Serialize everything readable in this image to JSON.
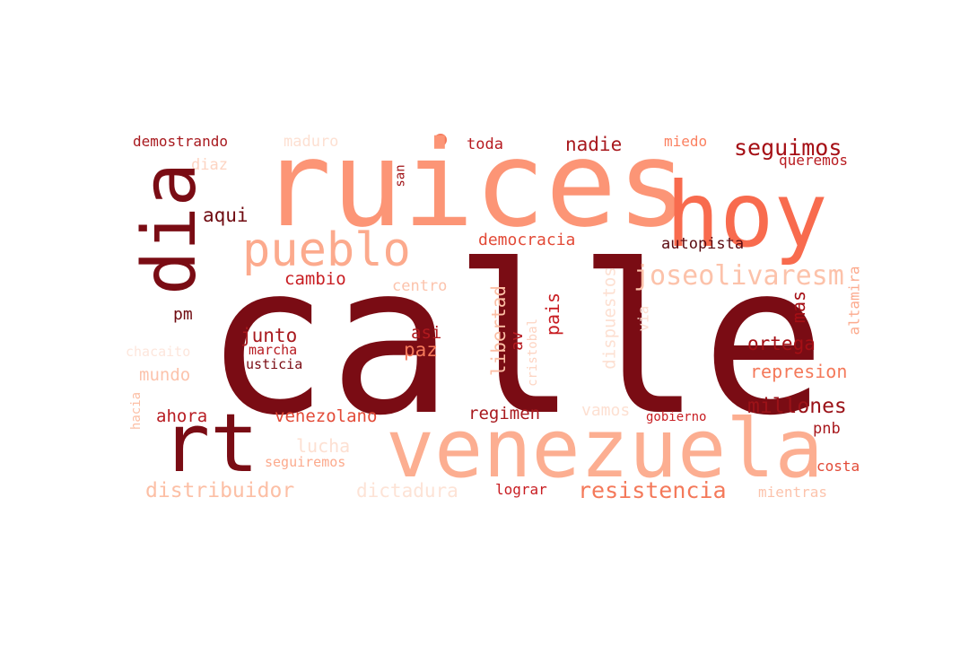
{
  "words": [
    {
      "id": "calle",
      "text": "calle",
      "color": "#7a0c14"
    },
    {
      "id": "ruices",
      "text": "ruices",
      "color": "#fc9576"
    },
    {
      "id": "hoy",
      "text": "hoy",
      "color": "#f86b4e"
    },
    {
      "id": "venezuela",
      "text": "venezuela",
      "color": "#fcae91"
    },
    {
      "id": "dia",
      "text": "dia",
      "color": "#7a0c14"
    },
    {
      "id": "rt",
      "text": "rt",
      "color": "#7a0c14"
    },
    {
      "id": "pueblo",
      "text": "pueblo",
      "color": "#fcaa8d"
    },
    {
      "id": "joseolivaresm",
      "text": "joseolivaresm",
      "color": "#fcc2aa"
    },
    {
      "id": "seguimos",
      "text": "seguimos",
      "color": "#a50f15"
    },
    {
      "id": "millones",
      "text": "millones",
      "color": "#9b1218"
    },
    {
      "id": "resistencia",
      "text": "resistencia",
      "color": "#f4795a"
    },
    {
      "id": "distribuidor",
      "text": "distribuidor",
      "color": "#fcbfa5"
    },
    {
      "id": "dictadura",
      "text": "dictadura",
      "color": "#fde3d6"
    },
    {
      "id": "democracia",
      "text": "democracia",
      "color": "#e24a37"
    },
    {
      "id": "nadie",
      "text": "nadie",
      "color": "#a8191e"
    },
    {
      "id": "aqui",
      "text": "aqui",
      "color": "#6f0a10"
    },
    {
      "id": "toda",
      "text": "toda",
      "color": "#b71b21"
    },
    {
      "id": "miedo",
      "text": "miedo",
      "color": "#fb8060"
    },
    {
      "id": "queremos",
      "text": "queremos",
      "color": "#b91b20"
    },
    {
      "id": "autopista",
      "text": "autopista",
      "color": "#5a0a10"
    },
    {
      "id": "demostrando",
      "text": "demostrando",
      "color": "#a8191e"
    },
    {
      "id": "maduro",
      "text": "maduro",
      "color": "#fde0d2"
    },
    {
      "id": "diaz",
      "text": "diaz",
      "color": "#fdd4c2"
    },
    {
      "id": "san",
      "text": "san",
      "color": "#a01216"
    },
    {
      "id": "cambio",
      "text": "cambio",
      "color": "#c81d22"
    },
    {
      "id": "centro",
      "text": "centro",
      "color": "#fcc3ac"
    },
    {
      "id": "pm",
      "text": "pm",
      "color": "#6f0a10"
    },
    {
      "id": "junto",
      "text": "junto",
      "color": "#a8191e"
    },
    {
      "id": "asi",
      "text": "asi",
      "color": "#b01a1f"
    },
    {
      "id": "paz",
      "text": "paz",
      "color": "#f4795a"
    },
    {
      "id": "marcha",
      "text": "marcha",
      "color": "#b71b21"
    },
    {
      "id": "justicia",
      "text": "justicia",
      "color": "#7a0c14"
    },
    {
      "id": "mundo",
      "text": "mundo",
      "color": "#fcc3ac"
    },
    {
      "id": "chacaito",
      "text": "chacaito",
      "color": "#fde6dc"
    },
    {
      "id": "ahora",
      "text": "ahora",
      "color": "#b71b21"
    },
    {
      "id": "venezolano",
      "text": "venezolano",
      "color": "#e24a37"
    },
    {
      "id": "regimen",
      "text": "regimen",
      "color": "#a8191e"
    },
    {
      "id": "vamos",
      "text": "vamos",
      "color": "#fde0d2"
    },
    {
      "id": "gobierno",
      "text": "gobierno",
      "color": "#c81d22"
    },
    {
      "id": "pnb",
      "text": "pnb",
      "color": "#a8191e"
    },
    {
      "id": "ortega",
      "text": "ortega",
      "color": "#a50f15"
    },
    {
      "id": "represion",
      "text": "represion",
      "color": "#f4795a"
    },
    {
      "id": "mas",
      "text": "mas",
      "color": "#a50f15"
    },
    {
      "id": "altamira",
      "text": "altamira",
      "color": "#fcaa8d"
    },
    {
      "id": "via",
      "text": "via",
      "color": "#fde0d2"
    },
    {
      "id": "pais",
      "text": "pais",
      "color": "#c81d22"
    },
    {
      "id": "libertad",
      "text": "libertad",
      "color": "#fcbfa5"
    },
    {
      "id": "av",
      "text": "av",
      "color": "#b71b21"
    },
    {
      "id": "cristobal",
      "text": "cristobal",
      "color": "#fdd4c2"
    },
    {
      "id": "dispuestos",
      "text": "dispuestos",
      "color": "#fde0d2"
    },
    {
      "id": "lucha",
      "text": "lucha",
      "color": "#fde0d2"
    },
    {
      "id": "seguiremos",
      "text": "seguiremos",
      "color": "#fcaa8d"
    },
    {
      "id": "lograr",
      "text": "lograr",
      "color": "#c81d22"
    },
    {
      "id": "costa",
      "text": "costa",
      "color": "#e24a37"
    },
    {
      "id": "mientras",
      "text": "mientras",
      "color": "#fcc3ac"
    },
    {
      "id": "hacia",
      "text": "hacia",
      "color": "#fcbfa5"
    }
  ],
  "dot_color": "#f4795a"
}
